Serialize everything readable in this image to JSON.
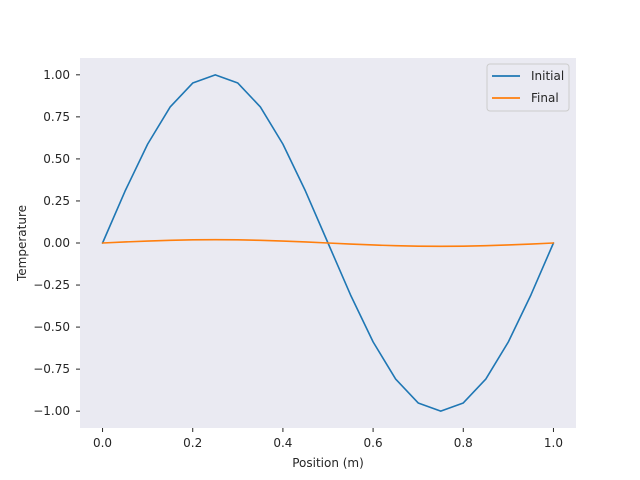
{
  "chart_data": {
    "type": "line",
    "title": "",
    "xlabel": "Position (m)",
    "ylabel": "Temperature",
    "xlim": [
      -0.05,
      1.05
    ],
    "ylim": [
      -1.1,
      1.1
    ],
    "xticks": [
      0.0,
      0.2,
      0.4,
      0.6,
      0.8,
      1.0
    ],
    "xtick_labels": [
      "0.0",
      "0.2",
      "0.4",
      "0.6",
      "0.8",
      "1.0"
    ],
    "yticks": [
      1.0,
      0.75,
      0.5,
      0.25,
      0.0,
      -0.25,
      -0.5,
      -0.75,
      -1.0
    ],
    "ytick_labels": [
      "1.00",
      "0.75",
      "0.50",
      "0.25",
      "0.00",
      "−0.25",
      "−0.50",
      "−0.75",
      "−1.00"
    ],
    "grid": false,
    "background_color": "#eaeaf2",
    "legend_position": "top-right",
    "x": [
      0.0,
      0.05,
      0.1,
      0.15,
      0.2,
      0.25,
      0.3,
      0.35,
      0.4,
      0.45,
      0.5,
      0.55,
      0.6,
      0.65,
      0.7,
      0.75,
      0.8,
      0.85,
      0.9,
      0.95,
      1.0
    ],
    "series": [
      {
        "name": "Initial",
        "color": "#1f77b4",
        "values": [
          0.0,
          0.309,
          0.588,
          0.809,
          0.951,
          1.0,
          0.951,
          0.809,
          0.588,
          0.309,
          0.0,
          -0.309,
          -0.588,
          -0.809,
          -0.951,
          -1.0,
          -0.951,
          -0.809,
          -0.588,
          -0.309,
          0.0
        ]
      },
      {
        "name": "Final",
        "color": "#ff7f0e",
        "values": [
          0.0,
          0.0062,
          0.0118,
          0.0162,
          0.019,
          0.02,
          0.019,
          0.0162,
          0.0118,
          0.0062,
          0.0,
          -0.0062,
          -0.0118,
          -0.0162,
          -0.019,
          -0.02,
          -0.019,
          -0.0162,
          -0.0118,
          -0.0062,
          0.0
        ]
      }
    ]
  }
}
